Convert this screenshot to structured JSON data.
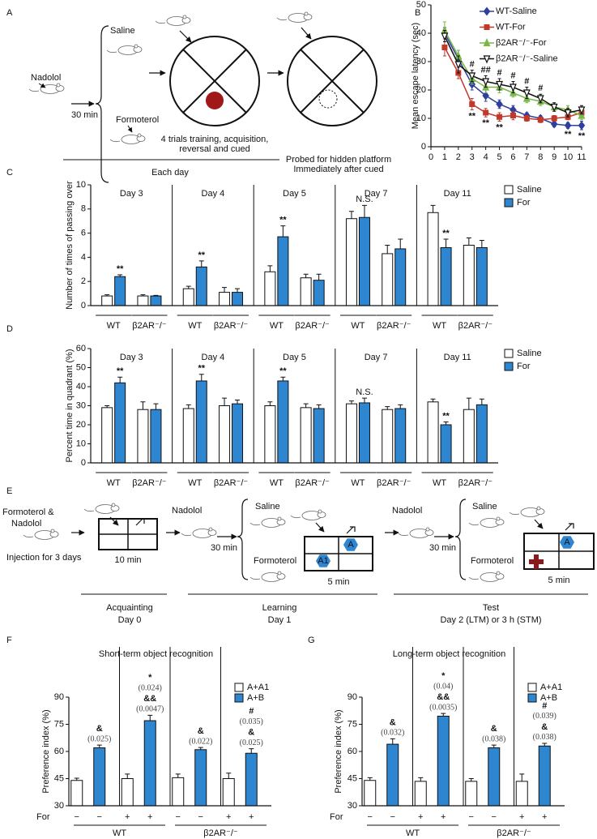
{
  "diagram_a": {
    "label": "A",
    "nadolol": "Nadolol",
    "delay": "30 min",
    "saline": "Saline",
    "formoterol": "Formoterol",
    "training": [
      "4 trials training, acquisition,",
      "reversal and cued"
    ],
    "probe": [
      "Probed for hidden platform",
      "Immediately after cued"
    ],
    "footer": "Each day"
  },
  "diagram_e": {
    "label": "E",
    "drugs": [
      "Formoterol &",
      "Nadolol"
    ],
    "injection": "Injection for 3 days",
    "stages": [
      {
        "duration": "10 min",
        "name": "Acquainting",
        "day": "Day 0"
      },
      {
        "pre": "Nadolol",
        "delay": "30 min",
        "saline": "Saline",
        "formoterol": "Formoterol",
        "duration": "5 min",
        "name": "Learning",
        "day": "Day 1",
        "objects": [
          "A",
          "A1"
        ]
      },
      {
        "pre": "Nadolol",
        "delay": "30 min",
        "saline": "Saline",
        "formoterol": "Formoterol",
        "duration": "5 min",
        "name": "Test",
        "day": "Day 2 (LTM) or 3 h (STM)",
        "objects": [
          "A"
        ]
      }
    ]
  },
  "chart_data": [
    {
      "label": "B",
      "type": "line",
      "ylabel": "Mean escape latency (sec)",
      "x": [
        1,
        2,
        3,
        4,
        5,
        6,
        7,
        8,
        9,
        10,
        11
      ],
      "xlim": [
        0,
        11
      ],
      "xticks": [
        0,
        1,
        2,
        3,
        4,
        5,
        6,
        7,
        8,
        9,
        10,
        11
      ],
      "ylim": [
        0,
        50
      ],
      "yticks": [
        0,
        10,
        20,
        30,
        40,
        50
      ],
      "series": [
        {
          "name": "WT-Saline",
          "color": "#2f3f9e",
          "marker": "diamond",
          "values": [
            40,
            31,
            22,
            18,
            15,
            13,
            11,
            10,
            8,
            7.5,
            7.5
          ],
          "errors": [
            2,
            3,
            2,
            2,
            1.5,
            1.5,
            1,
            1,
            1,
            1,
            1.5
          ]
        },
        {
          "name": "WT-For",
          "color": "#c0392b",
          "marker": "square",
          "values": [
            35,
            26,
            15,
            12,
            10.5,
            11,
            10,
            9.5,
            10,
            10.5,
            12
          ],
          "errors": [
            3,
            2,
            2,
            1.5,
            1.5,
            1.5,
            1,
            1,
            1,
            1,
            2
          ]
        },
        {
          "name": "β2AR⁻/⁻-For",
          "color": "#7ab648",
          "marker": "triangle",
          "values": [
            41,
            32,
            24,
            21,
            21,
            19,
            17,
            16,
            14,
            13,
            11
          ],
          "errors": [
            3,
            2,
            2,
            2,
            2,
            1.5,
            1.5,
            1.5,
            1.5,
            1.5,
            1.5
          ]
        },
        {
          "name": "β2AR⁻/⁻-Saline",
          "color": "#111111",
          "marker": "triangle-down",
          "values": [
            39,
            29,
            25,
            23,
            22,
            21,
            19,
            17,
            14,
            12,
            13
          ],
          "errors": [
            2,
            3,
            2,
            2,
            2,
            2,
            2,
            1.5,
            1.5,
            1.5,
            1.5
          ]
        }
      ],
      "annotations": [
        {
          "x": 3,
          "text": "#",
          "position": "above"
        },
        {
          "x": 4,
          "text": "##",
          "position": "above"
        },
        {
          "x": 5,
          "text": "#",
          "position": "above"
        },
        {
          "x": 6,
          "text": "#",
          "position": "above"
        },
        {
          "x": 7,
          "text": "#",
          "position": "above"
        },
        {
          "x": 8,
          "text": "#",
          "position": "above"
        },
        {
          "x": 3,
          "text": "**",
          "position": "below"
        },
        {
          "x": 4,
          "text": "**",
          "position": "below"
        },
        {
          "x": 5,
          "text": "**",
          "position": "below"
        },
        {
          "x": 10,
          "text": "**",
          "position": "below"
        },
        {
          "x": 11,
          "text": "**",
          "position": "below"
        }
      ]
    },
    {
      "label": "C",
      "type": "bar",
      "ylabel": "Number of times of passing over",
      "group_labels": "top",
      "legend": "right",
      "groups": [
        "Day 3",
        "Day 4",
        "Day 5",
        "Day 7",
        "Day 11"
      ],
      "categories": [
        "WT",
        "β2AR⁻/⁻",
        "WT",
        "β2AR⁻/⁻",
        "WT",
        "β2AR⁻/⁻",
        "WT",
        "β2AR⁻/⁻",
        "WT",
        "β2AR⁻/⁻"
      ],
      "ylim": [
        0,
        10
      ],
      "yticks": [
        0,
        2,
        4,
        6,
        8,
        10
      ],
      "series": [
        {
          "name": "Saline",
          "color": "#ffffff",
          "values": [
            0.8,
            0.8,
            1.4,
            1.1,
            2.8,
            2.3,
            7.2,
            4.3,
            7.7,
            5.0
          ],
          "errors": [
            0.1,
            0.1,
            0.2,
            0.4,
            0.5,
            0.3,
            0.6,
            0.7,
            0.6,
            0.6
          ]
        },
        {
          "name": "For",
          "color": "#2e86d1",
          "values": [
            2.4,
            0.8,
            3.2,
            1.1,
            5.7,
            2.1,
            7.3,
            4.7,
            4.8,
            4.8
          ],
          "errors": [
            0.15,
            0.05,
            0.5,
            0.3,
            0.9,
            0.5,
            1.0,
            0.8,
            0.7,
            0.6
          ]
        }
      ],
      "annotations": [
        {
          "category": 0,
          "lines": [
            "**"
          ]
        },
        {
          "category": 2,
          "lines": [
            "**"
          ]
        },
        {
          "category": 4,
          "lines": [
            "**"
          ]
        },
        {
          "category": 6,
          "lines": [
            "N.S."
          ]
        },
        {
          "category": 8,
          "lines": [
            "**"
          ]
        }
      ]
    },
    {
      "label": "D",
      "type": "bar",
      "ylabel": "Percent time in quadrant (%)",
      "group_labels": "top",
      "legend": "right",
      "groups": [
        "Day 3",
        "Day 4",
        "Day 5",
        "Day 7",
        "Day 11"
      ],
      "categories": [
        "WT",
        "β2AR⁻/⁻",
        "WT",
        "β2AR⁻/⁻",
        "WT",
        "β2AR⁻/⁻",
        "WT",
        "β2AR⁻/⁻",
        "WT",
        "β2AR⁻/⁻"
      ],
      "ylim": [
        0,
        60
      ],
      "yticks": [
        0,
        10,
        20,
        30,
        40,
        50,
        60
      ],
      "series": [
        {
          "name": "Saline",
          "color": "#ffffff",
          "values": [
            29,
            28,
            28.5,
            30,
            30,
            29,
            31,
            28,
            32,
            28
          ],
          "errors": [
            1,
            4,
            2,
            4,
            2,
            2,
            1.5,
            1.5,
            1.5,
            6
          ]
        },
        {
          "name": "For",
          "color": "#2e86d1",
          "values": [
            42,
            28,
            43,
            31,
            43,
            28.5,
            31.5,
            28.5,
            20,
            30.5
          ],
          "errors": [
            3,
            3,
            3.5,
            2,
            2,
            2,
            2.5,
            2,
            1.5,
            3
          ]
        }
      ],
      "annotations": [
        {
          "category": 0,
          "lines": [
            "**"
          ]
        },
        {
          "category": 2,
          "lines": [
            "**"
          ]
        },
        {
          "category": 4,
          "lines": [
            "**"
          ]
        },
        {
          "category": 6,
          "lines": [
            "N.S."
          ]
        },
        {
          "category": 8,
          "lines": [
            "**"
          ]
        }
      ]
    },
    {
      "label": "F",
      "type": "bar",
      "title": "Short-term object recognition",
      "ylabel": "Preference index (%)",
      "group_labels": "bottom",
      "legend": "upper right",
      "treatment_label": "For",
      "groups": [
        "WT",
        "β2AR⁻/⁻"
      ],
      "categories": [
        "−",
        "+",
        "−",
        "+"
      ],
      "ylim": [
        30,
        90
      ],
      "yticks": [
        30,
        45,
        60,
        75,
        90
      ],
      "series": [
        {
          "name": "A+A1",
          "color": "#ffffff",
          "values": [
            44,
            45,
            45.5,
            45
          ],
          "errors": [
            1.2,
            2.5,
            2,
            3
          ]
        },
        {
          "name": "A+B",
          "color": "#2e86d1",
          "values": [
            62,
            77,
            61,
            59
          ],
          "errors": [
            1.5,
            3,
            1.2,
            2.5
          ]
        }
      ],
      "annotations": [
        {
          "category": 0,
          "lines": [
            "&",
            "(0.025)"
          ]
        },
        {
          "category": 1,
          "lines": [
            "*",
            "(0.024)",
            "&&",
            "(0.0047)"
          ]
        },
        {
          "category": 2,
          "lines": [
            "&",
            "(0.022)"
          ]
        },
        {
          "category": 3,
          "lines": [
            "#",
            "(0.035)",
            "&",
            "(0.025)"
          ]
        }
      ]
    },
    {
      "label": "G",
      "type": "bar",
      "title": "Long-term object recognition",
      "ylabel": "Preference index (%)",
      "group_labels": "bottom",
      "legend": "upper right",
      "treatment_label": "For",
      "groups": [
        "WT",
        "β2AR⁻/⁻"
      ],
      "categories": [
        "−",
        "+",
        "−",
        "+"
      ],
      "ylim": [
        30,
        90
      ],
      "yticks": [
        30,
        45,
        60,
        75,
        90
      ],
      "series": [
        {
          "name": "A+A1",
          "color": "#ffffff",
          "values": [
            44,
            43.5,
            43.5,
            43.5
          ],
          "errors": [
            1.5,
            2,
            1.5,
            4
          ]
        },
        {
          "name": "A+B",
          "color": "#2e86d1",
          "values": [
            64,
            79.5,
            62,
            63
          ],
          "errors": [
            3,
            1.5,
            1.5,
            1.5
          ]
        }
      ],
      "annotations": [
        {
          "category": 0,
          "lines": [
            "&",
            "(0.032)"
          ]
        },
        {
          "category": 1,
          "lines": [
            "*",
            "(0.04)",
            "&&",
            "(0.0035)"
          ]
        },
        {
          "category": 2,
          "lines": [
            "&",
            "(0.038)"
          ]
        },
        {
          "category": 3,
          "lines": [
            "#",
            "(0.039)",
            "&",
            "(0.038)"
          ]
        }
      ]
    }
  ]
}
